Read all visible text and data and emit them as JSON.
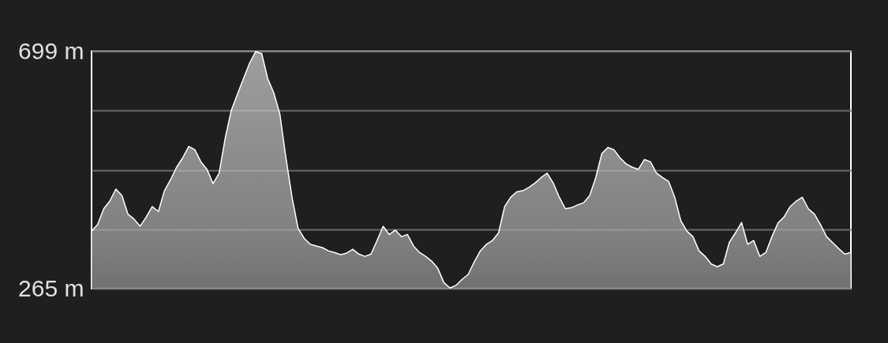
{
  "chart_data": {
    "type": "area",
    "categories": [
      null,
      null,
      null,
      null,
      null,
      null,
      null,
      null,
      null,
      null,
      null,
      null,
      null,
      null,
      null,
      null,
      null,
      null,
      null,
      null,
      null,
      null,
      null,
      null,
      null,
      null,
      null,
      null,
      null,
      null,
      null,
      null,
      null,
      null,
      null,
      null,
      null,
      null,
      null,
      null,
      null,
      null,
      null,
      null,
      null,
      null,
      null,
      null,
      null,
      null,
      null,
      null,
      null,
      null,
      null,
      null,
      null,
      null,
      null,
      null,
      null,
      null,
      null,
      null,
      null,
      null,
      null,
      null,
      null,
      null,
      null,
      null,
      null,
      null,
      null,
      null,
      null,
      null,
      null,
      null,
      null,
      null,
      null,
      null,
      null,
      null,
      null,
      null,
      null,
      null,
      null,
      null,
      null,
      null,
      null,
      null,
      null,
      null,
      null,
      null,
      null,
      null,
      null,
      null,
      null,
      null,
      null,
      null,
      null,
      null,
      null,
      null,
      null,
      null,
      null,
      null,
      null,
      null,
      null,
      null,
      null,
      null,
      null,
      null,
      null,
      null
    ],
    "series": [
      {
        "color": "#a8a8a8",
        "values": [
          370,
          382,
          411,
          425,
          447,
          435,
          401,
          392,
          379,
          396,
          415,
          406,
          444,
          464,
          487,
          504,
          525,
          519,
          497,
          483,
          457,
          476,
          540,
          591,
          620,
          649,
          677,
          698,
          695,
          649,
          623,
          584,
          504,
          432,
          375,
          357,
          346,
          343,
          340,
          334,
          331,
          327,
          330,
          337,
          328,
          324,
          328,
          353,
          379,
          364,
          372,
          360,
          364,
          343,
          331,
          324,
          315,
          302,
          276,
          266,
          271,
          282,
          291,
          314,
          334,
          346,
          353,
          367,
          415,
          432,
          442,
          444,
          450,
          458,
          468,
          476,
          458,
          432,
          411,
          413,
          418,
          422,
          435,
          468,
          512,
          523,
          519,
          504,
          493,
          487,
          483,
          501,
          497,
          476,
          468,
          461,
          432,
          389,
          370,
          360,
          334,
          324,
          310,
          305,
          310,
          350,
          367,
          386,
          346,
          353,
          324,
          331,
          360,
          385,
          396,
          415,
          425,
          432,
          411,
          401,
          382,
          360,
          349,
          338,
          328,
          331
        ]
      }
    ],
    "ylim": [
      265,
      699
    ],
    "yticks": [
      {
        "value": 699,
        "label": "699 m"
      },
      {
        "value": 590.5,
        "label": null
      },
      {
        "value": 482,
        "label": null
      },
      {
        "value": 373.5,
        "label": null
      },
      {
        "value": 265,
        "label": "265 m"
      }
    ],
    "grid": "y",
    "tick_labels": "y"
  }
}
